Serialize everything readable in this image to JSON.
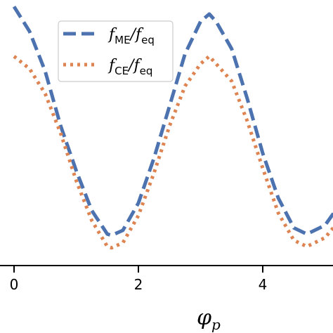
{
  "chart_data": {
    "type": "line",
    "xlabel": "φ",
    "xlabel_sub": "p",
    "xlim": [
      -0.05,
      5.2
    ],
    "ylim": [
      0.0,
      1.0
    ],
    "xticks": [
      0,
      2,
      4
    ],
    "xtick_labels": [
      "0",
      "2",
      "4"
    ],
    "grid": false,
    "legend_position": "top-center",
    "series": [
      {
        "name": "f_ME/f_eq",
        "label_main": "f",
        "label_sub1": "ME",
        "label_sep": "/f",
        "label_sub2": "eq",
        "style": "dashed",
        "color": "#4c72b0",
        "x": [
          0,
          0.25,
          0.5,
          0.75,
          1.0,
          1.25,
          1.5,
          1.57,
          1.75,
          2.0,
          2.25,
          2.5,
          2.75,
          3.0,
          3.14,
          3.25,
          3.5,
          3.75,
          4.0,
          4.25,
          4.5,
          4.71,
          5.0,
          5.2
        ],
        "y": [
          1.03,
          0.93,
          0.77,
          0.55,
          0.37,
          0.21,
          0.115,
          0.11,
          0.13,
          0.24,
          0.42,
          0.63,
          0.84,
          0.97,
          1.0,
          0.97,
          0.86,
          0.66,
          0.44,
          0.26,
          0.14,
          0.115,
          0.15,
          0.22
        ]
      },
      {
        "name": "f_CE/f_eq",
        "label_main": "f",
        "label_sub1": "CE",
        "label_sep": "/f",
        "label_sub2": "eq",
        "style": "dotted",
        "color": "#dd8452",
        "x": [
          0,
          0.25,
          0.5,
          0.75,
          1.0,
          1.25,
          1.5,
          1.57,
          1.75,
          2.0,
          2.25,
          2.5,
          2.75,
          3.0,
          3.14,
          3.25,
          3.5,
          3.75,
          4.0,
          4.25,
          4.5,
          4.71,
          5.0,
          5.2
        ],
        "y": [
          0.83,
          0.78,
          0.68,
          0.52,
          0.33,
          0.17,
          0.065,
          0.06,
          0.08,
          0.19,
          0.36,
          0.55,
          0.71,
          0.8,
          0.83,
          0.8,
          0.73,
          0.57,
          0.38,
          0.2,
          0.09,
          0.065,
          0.1,
          0.16
        ]
      }
    ]
  }
}
